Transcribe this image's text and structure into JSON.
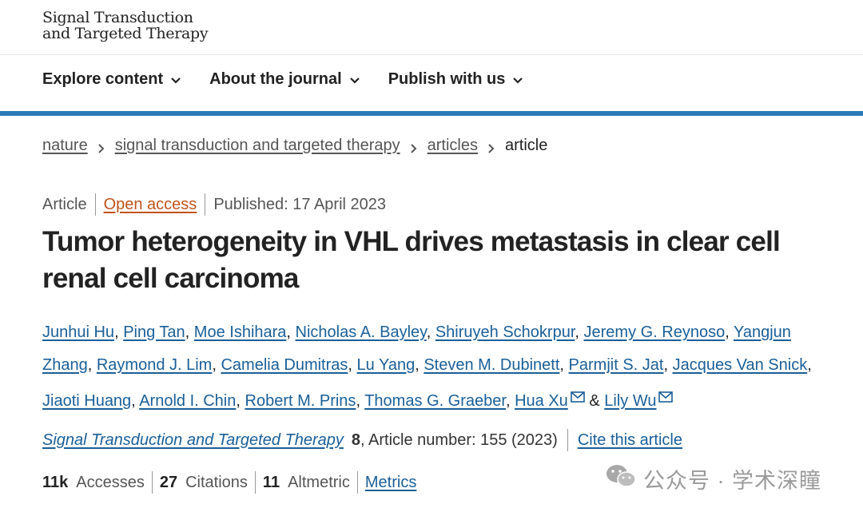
{
  "journal": {
    "logo_line1": "Signal Transduction",
    "logo_line2": "and Targeted Therapy"
  },
  "nav": {
    "items": [
      {
        "label": "Explore content"
      },
      {
        "label": "About the journal"
      },
      {
        "label": "Publish with us"
      }
    ]
  },
  "breadcrumb": {
    "items": [
      "nature",
      "signal transduction and targeted therapy",
      "articles"
    ],
    "current": "article"
  },
  "meta": {
    "type": "Article",
    "access": "Open access",
    "published": "Published: 17 April 2023"
  },
  "article": {
    "title": "Tumor heterogeneity in VHL drives metastasis in clear cell renal cell carcinoma",
    "authors": [
      "Junhui Hu",
      "Ping Tan",
      "Moe Ishihara",
      "Nicholas A. Bayley",
      "Shiruyeh Schokrpur",
      "Jeremy G. Reynoso",
      "Yangjun Zhang",
      "Raymond J. Lim",
      "Camelia Dumitras",
      "Lu Yang",
      "Steven M. Dubinett",
      "Parmjit S. Jat",
      "Jacques Van Snick",
      "Jiaoti Huang",
      "Arnold I. Chin",
      "Robert M. Prins",
      "Thomas G. Graeber",
      "Hua Xu",
      "Lily Wu"
    ],
    "author_joiner": "&"
  },
  "citation": {
    "journal": "Signal Transduction and Targeted Therapy",
    "volume": "8",
    "article_number": ", Article number: 155 (2023)",
    "cite_label": "Cite this article"
  },
  "metrics": {
    "accesses_value": "11k",
    "accesses_label": "Accesses",
    "citations_value": "27",
    "citations_label": "Citations",
    "altmetric_value": "11",
    "altmetric_label": "Altmetric",
    "metrics_link": "Metrics"
  },
  "watermark": {
    "text": "公众号 · 学术深瞳"
  },
  "colors": {
    "accent_rule": "#2a7bb8",
    "link": "#1a5f99",
    "open_access": "#c0531a"
  }
}
